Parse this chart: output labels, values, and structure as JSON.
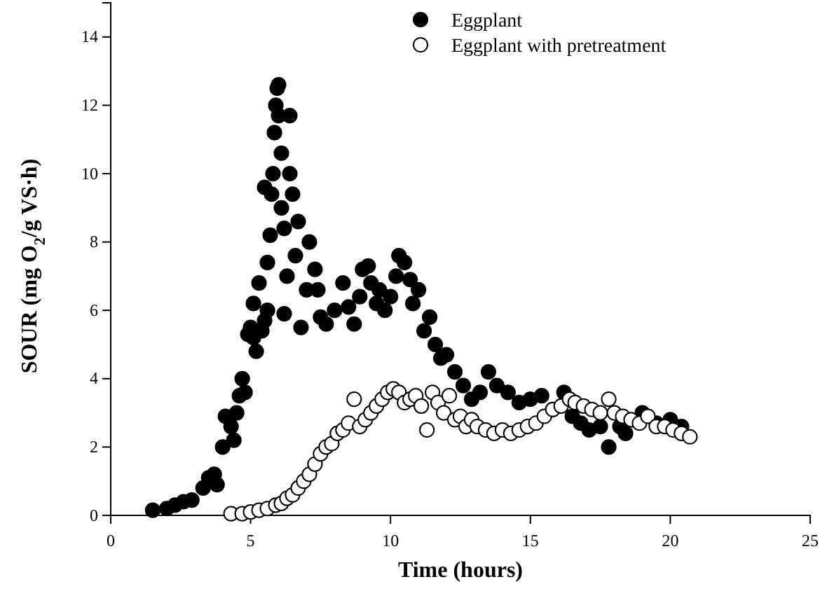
{
  "chart_data": {
    "type": "scatter",
    "xlabel": "Time (hours)",
    "ylabel": "SOUR (mg O$_{2}$/g VS·h)",
    "xlim": [
      0,
      25
    ],
    "xticks": [
      0,
      5,
      10,
      15,
      20,
      25
    ],
    "ylim": [
      0,
      15
    ],
    "yticks": [
      0,
      2,
      4,
      6,
      8,
      10,
      12,
      14
    ],
    "grid": false,
    "legend": "top right",
    "marker": "circle",
    "series": [
      {
        "name": "Eggplant",
        "color": "#000000",
        "x": [
          1.5,
          2,
          2.3,
          2.6,
          2.9,
          3.3,
          3.5,
          3.7,
          3.8,
          4,
          4.1,
          4.3,
          4.4,
          4.5,
          4.6,
          4.7,
          4.8,
          4.9,
          5,
          5.1,
          5.1,
          5.2,
          5.3,
          5.4,
          5.5,
          5.6,
          5.6,
          5.7,
          5.75,
          5.8,
          5.85,
          5.9,
          5.95,
          6,
          6,
          6.1,
          6.1,
          5.5,
          6.2,
          6.2,
          6.3,
          6.4,
          6.4,
          6.5,
          6.6,
          6.7,
          6.8,
          7,
          7.1,
          7.3,
          7.4,
          7.5,
          7.7,
          8,
          8.3,
          8.5,
          8.7,
          8.9,
          9,
          9.2,
          9.3,
          9.5,
          9.6,
          9.8,
          10,
          10.2,
          10.3,
          10.5,
          10.7,
          10.8,
          11,
          11.2,
          11.4,
          11.6,
          11.8,
          12,
          12.3,
          12.6,
          12.9,
          13.2,
          13.5,
          13.8,
          14.2,
          14.6,
          15,
          15.4,
          15.8,
          16.2,
          16.5,
          16.8,
          17.1,
          17.5,
          17.8,
          18.2,
          18.4,
          19,
          19.5,
          20,
          20.4
        ],
        "values": [
          0.15,
          0.2,
          0.3,
          0.4,
          0.45,
          0.8,
          1.1,
          1.2,
          0.9,
          2,
          2.9,
          2.6,
          2.2,
          3,
          3.5,
          4,
          3.6,
          5.3,
          5.5,
          6.2,
          5.2,
          4.8,
          6.8,
          5.4,
          5.7,
          6,
          7.4,
          8.2,
          9.4,
          10,
          11.2,
          12,
          12.5,
          12.6,
          11.7,
          9,
          10.6,
          9.6,
          8.4,
          5.9,
          7,
          11.7,
          10,
          9.4,
          7.6,
          8.6,
          5.5,
          6.6,
          8,
          7.2,
          6.6,
          5.8,
          5.6,
          6,
          6.8,
          6.1,
          5.6,
          6.4,
          7.2,
          7.3,
          6.8,
          6.2,
          6.6,
          6,
          6.4,
          7,
          7.6,
          7.4,
          6.9,
          6.2,
          6.6,
          5.4,
          5.8,
          5,
          4.6,
          4.7,
          4.2,
          3.8,
          3.4,
          3.6,
          4.2,
          3.8,
          3.6,
          3.3,
          3.4,
          3.5,
          3.1,
          3.6,
          2.9,
          2.7,
          2.5,
          2.6,
          2,
          2.6,
          2.4,
          3,
          2.7,
          2.8,
          2.6
        ]
      },
      {
        "name": "Eggplant with pretreatment",
        "color": "#ffffff",
        "x": [
          4.3,
          4.7,
          5,
          5.3,
          5.6,
          5.9,
          6.1,
          6.3,
          6.5,
          6.7,
          6.9,
          7.1,
          7.3,
          7.5,
          7.7,
          7.9,
          8.1,
          8.3,
          8.5,
          8.7,
          8.9,
          9.1,
          9.3,
          9.5,
          9.7,
          9.9,
          10.1,
          10.3,
          10.5,
          10.7,
          10.9,
          11.1,
          11.3,
          11.5,
          11.7,
          11.9,
          12.1,
          12.3,
          12.5,
          12.7,
          12.9,
          13.1,
          13.4,
          13.7,
          14,
          14.3,
          14.6,
          14.9,
          15.2,
          15.5,
          15.8,
          16.1,
          16.4,
          16.6,
          16.9,
          17.2,
          17.5,
          17.8,
          18,
          18.3,
          18.6,
          18.9,
          19.2,
          19.5,
          19.8,
          20.1,
          20.4,
          20.7
        ],
        "values": [
          0.05,
          0.05,
          0.1,
          0.15,
          0.2,
          0.3,
          0.35,
          0.5,
          0.6,
          0.8,
          1,
          1.2,
          1.5,
          1.8,
          2,
          2.1,
          2.4,
          2.5,
          2.7,
          3.4,
          2.6,
          2.8,
          3,
          3.2,
          3.4,
          3.6,
          3.7,
          3.6,
          3.3,
          3.4,
          3.5,
          3.2,
          2.5,
          3.6,
          3.3,
          3,
          3.5,
          2.8,
          2.9,
          2.6,
          2.8,
          2.6,
          2.5,
          2.4,
          2.5,
          2.4,
          2.5,
          2.6,
          2.7,
          2.9,
          3.1,
          3.2,
          3.4,
          3.3,
          3.2,
          3.1,
          3,
          3.4,
          3,
          2.9,
          2.8,
          2.7,
          2.9,
          2.6,
          2.6,
          2.5,
          2.4,
          2.3
        ]
      }
    ]
  }
}
